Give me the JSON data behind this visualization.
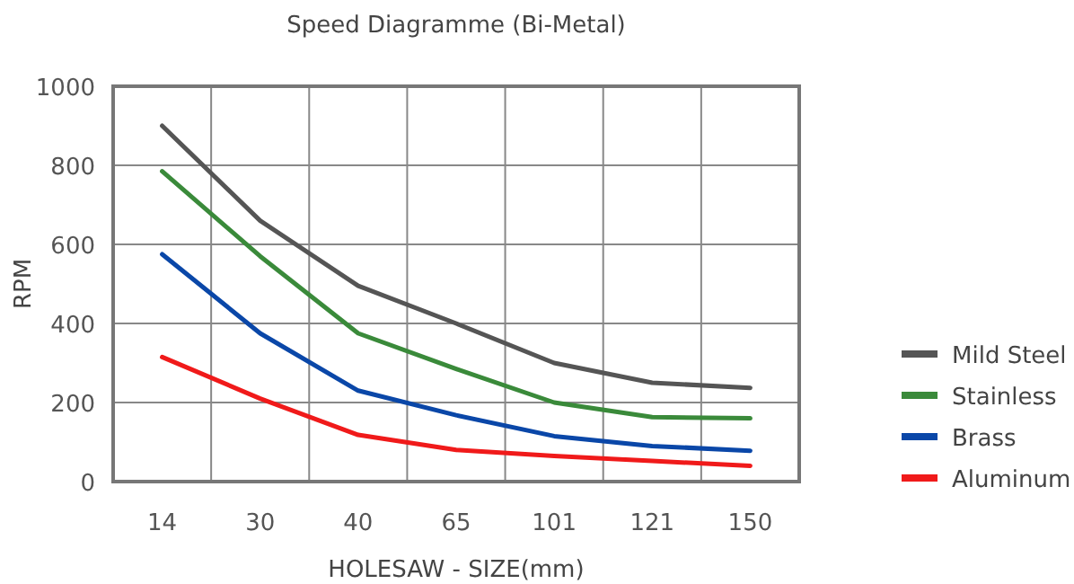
{
  "chart_data": {
    "type": "line",
    "title": "Speed Diagramme (Bi-Metal)",
    "xlabel": "HOLESAW - SIZE(mm)",
    "ylabel": "RPM",
    "categories": [
      "14",
      "30",
      "40",
      "65",
      "101",
      "121",
      "150"
    ],
    "series": [
      {
        "name": "Mild Steel",
        "color": "#555555",
        "values": [
          900,
          660,
          495,
          400,
          300,
          250,
          237
        ]
      },
      {
        "name": "Stainless",
        "color": "#3a8a3a",
        "values": [
          785,
          570,
          375,
          285,
          200,
          163,
          160
        ]
      },
      {
        "name": "Brass",
        "color": "#0a47a8",
        "values": [
          575,
          375,
          230,
          168,
          115,
          90,
          78
        ]
      },
      {
        "name": "Aluminum",
        "color": "#f01a1a",
        "values": [
          315,
          210,
          118,
          80,
          65,
          52,
          40
        ]
      }
    ],
    "ylim": [
      0,
      1000
    ],
    "yticks": [
      0,
      200,
      400,
      600,
      800,
      1000
    ],
    "grid": true,
    "legend": "right",
    "marker": "none",
    "line_style": "solid"
  }
}
